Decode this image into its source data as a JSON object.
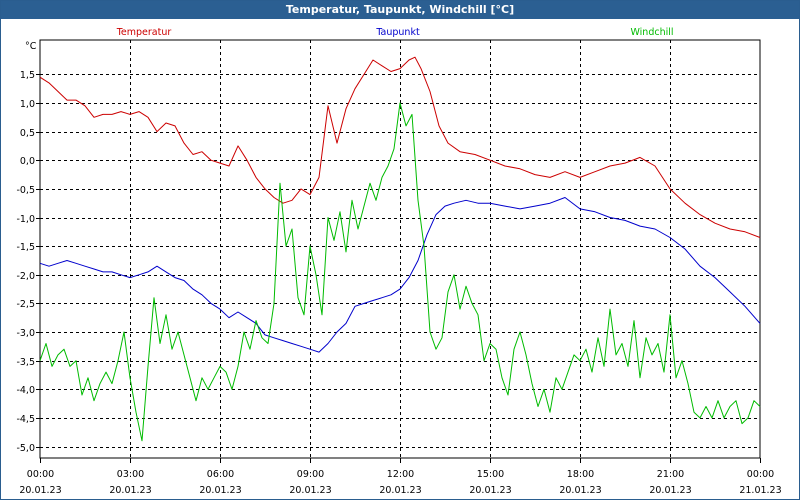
{
  "chart_data": {
    "type": "line",
    "title": "Temperatur, Taupunkt, Windchill [°C]",
    "ylabel": "°C",
    "ylim": [
      -5.2,
      2.1
    ],
    "y_ticks": [
      1.5,
      1.0,
      0.5,
      0.0,
      -0.5,
      -1.0,
      -1.5,
      -2.0,
      -2.5,
      -3.0,
      -3.5,
      -4.0,
      -4.5,
      -5.0
    ],
    "y_tick_labels": [
      "1,5",
      "1,0",
      "0,5",
      "0,0",
      "-0,5",
      "-1,0",
      "-1,5",
      "-2,0",
      "-2,5",
      "-3,0",
      "-3,5",
      "-4,0",
      "-4,5",
      "-5,0"
    ],
    "xlim": [
      0,
      24
    ],
    "x_ticks": [
      0,
      3,
      6,
      9,
      12,
      15,
      18,
      21,
      24
    ],
    "x_tick_times": [
      "00:00",
      "03:00",
      "06:00",
      "09:00",
      "12:00",
      "15:00",
      "18:00",
      "21:00",
      "00:00"
    ],
    "x_tick_dates": [
      "20.01.23",
      "20.01.23",
      "20.01.23",
      "20.01.23",
      "20.01.23",
      "20.01.23",
      "20.01.23",
      "20.01.23",
      "21.01.23"
    ],
    "grid": true,
    "series": [
      {
        "name": "Temperatur",
        "color": "#cc0000",
        "x": [
          0,
          0.3,
          0.6,
          0.9,
          1.2,
          1.5,
          1.8,
          2.1,
          2.4,
          2.7,
          3.0,
          3.3,
          3.6,
          3.9,
          4.2,
          4.5,
          4.8,
          5.1,
          5.4,
          5.7,
          6.0,
          6.3,
          6.6,
          6.9,
          7.2,
          7.5,
          7.8,
          8.1,
          8.4,
          8.7,
          9.0,
          9.3,
          9.6,
          9.9,
          10.2,
          10.5,
          10.8,
          11.1,
          11.4,
          11.7,
          12.0,
          12.3,
          12.5,
          12.7,
          13.0,
          13.3,
          13.6,
          14.0,
          14.5,
          15.0,
          15.5,
          16.0,
          16.5,
          17.0,
          17.5,
          18.0,
          18.5,
          19.0,
          19.5,
          20.0,
          20.5,
          21.0,
          21.5,
          22.0,
          22.5,
          23.0,
          23.5,
          24.0
        ],
        "values": [
          1.45,
          1.35,
          1.2,
          1.05,
          1.05,
          0.95,
          0.75,
          0.8,
          0.8,
          0.85,
          0.8,
          0.85,
          0.75,
          0.5,
          0.65,
          0.6,
          0.3,
          0.1,
          0.15,
          0.0,
          -0.05,
          -0.1,
          0.25,
          0.0,
          -0.3,
          -0.5,
          -0.65,
          -0.75,
          -0.7,
          -0.5,
          -0.6,
          -0.3,
          0.95,
          0.3,
          0.9,
          1.25,
          1.5,
          1.75,
          1.65,
          1.55,
          1.6,
          1.75,
          1.8,
          1.6,
          1.2,
          0.6,
          0.3,
          0.15,
          0.1,
          0.0,
          -0.1,
          -0.15,
          -0.25,
          -0.3,
          -0.2,
          -0.3,
          -0.2,
          -0.1,
          -0.05,
          0.05,
          -0.1,
          -0.5,
          -0.75,
          -0.95,
          -1.1,
          -1.2,
          -1.25,
          -1.35
        ]
      },
      {
        "name": "Taupunkt",
        "color": "#0000cc",
        "x": [
          0,
          0.3,
          0.6,
          0.9,
          1.2,
          1.5,
          1.8,
          2.1,
          2.4,
          2.7,
          3.0,
          3.3,
          3.6,
          3.9,
          4.2,
          4.5,
          4.8,
          5.1,
          5.4,
          5.7,
          6.0,
          6.3,
          6.6,
          6.9,
          7.2,
          7.5,
          7.8,
          8.1,
          8.4,
          8.7,
          9.0,
          9.3,
          9.6,
          9.9,
          10.2,
          10.5,
          10.8,
          11.1,
          11.4,
          11.7,
          12.0,
          12.3,
          12.6,
          12.9,
          13.2,
          13.5,
          13.8,
          14.2,
          14.6,
          15.0,
          15.5,
          16.0,
          16.5,
          17.0,
          17.5,
          18.0,
          18.5,
          19.0,
          19.5,
          20.0,
          20.5,
          21.0,
          21.5,
          22.0,
          22.5,
          23.0,
          23.5,
          24.0
        ],
        "values": [
          -1.8,
          -1.85,
          -1.8,
          -1.75,
          -1.8,
          -1.85,
          -1.9,
          -1.95,
          -1.95,
          -2.0,
          -2.05,
          -2.0,
          -1.95,
          -1.85,
          -1.95,
          -2.05,
          -2.1,
          -2.25,
          -2.35,
          -2.5,
          -2.6,
          -2.75,
          -2.65,
          -2.75,
          -2.85,
          -3.05,
          -3.1,
          -3.15,
          -3.2,
          -3.25,
          -3.3,
          -3.35,
          -3.2,
          -3.0,
          -2.85,
          -2.55,
          -2.5,
          -2.45,
          -2.4,
          -2.35,
          -2.25,
          -2.05,
          -1.75,
          -1.3,
          -0.95,
          -0.8,
          -0.75,
          -0.7,
          -0.75,
          -0.75,
          -0.8,
          -0.85,
          -0.8,
          -0.75,
          -0.65,
          -0.85,
          -0.9,
          -1.0,
          -1.05,
          -1.15,
          -1.2,
          -1.35,
          -1.55,
          -1.85,
          -2.05,
          -2.3,
          -2.55,
          -2.85
        ]
      },
      {
        "name": "Windchill",
        "color": "#00bb00",
        "x": [
          0,
          0.2,
          0.4,
          0.6,
          0.8,
          1.0,
          1.2,
          1.4,
          1.6,
          1.8,
          2.0,
          2.2,
          2.4,
          2.6,
          2.8,
          3.0,
          3.2,
          3.4,
          3.6,
          3.8,
          4.0,
          4.2,
          4.4,
          4.6,
          4.8,
          5.0,
          5.2,
          5.4,
          5.6,
          5.8,
          6.0,
          6.2,
          6.4,
          6.6,
          6.8,
          7.0,
          7.2,
          7.4,
          7.6,
          7.8,
          8.0,
          8.2,
          8.4,
          8.6,
          8.8,
          9.0,
          9.2,
          9.4,
          9.6,
          9.8,
          10.0,
          10.2,
          10.4,
          10.6,
          10.8,
          11.0,
          11.2,
          11.4,
          11.6,
          11.8,
          12.0,
          12.2,
          12.4,
          12.6,
          12.8,
          13.0,
          13.2,
          13.4,
          13.6,
          13.8,
          14.0,
          14.2,
          14.4,
          14.6,
          14.8,
          15.0,
          15.2,
          15.4,
          15.6,
          15.8,
          16.0,
          16.2,
          16.4,
          16.6,
          16.8,
          17.0,
          17.2,
          17.4,
          17.6,
          17.8,
          18.0,
          18.2,
          18.4,
          18.6,
          18.8,
          19.0,
          19.2,
          19.4,
          19.6,
          19.8,
          20.0,
          20.2,
          20.4,
          20.6,
          20.8,
          21.0,
          21.2,
          21.4,
          21.6,
          21.8,
          22.0,
          22.2,
          22.4,
          22.6,
          22.8,
          23.0,
          23.2,
          23.4,
          23.6,
          23.8,
          24.0
        ],
        "values": [
          -3.5,
          -3.2,
          -3.6,
          -3.4,
          -3.3,
          -3.6,
          -3.5,
          -4.1,
          -3.8,
          -4.2,
          -3.9,
          -3.7,
          -3.9,
          -3.5,
          -3.0,
          -3.8,
          -4.4,
          -4.9,
          -3.6,
          -2.4,
          -3.2,
          -2.7,
          -3.3,
          -3.0,
          -3.4,
          -3.8,
          -4.2,
          -3.8,
          -4.0,
          -3.8,
          -3.6,
          -3.7,
          -4.0,
          -3.6,
          -3.0,
          -3.3,
          -2.8,
          -3.1,
          -3.2,
          -2.5,
          -0.4,
          -1.5,
          -1.2,
          -2.4,
          -2.7,
          -1.5,
          -2.0,
          -2.7,
          -1.0,
          -1.4,
          -0.9,
          -1.6,
          -0.7,
          -1.2,
          -0.8,
          -0.4,
          -0.7,
          -0.3,
          -0.1,
          0.2,
          1.0,
          0.6,
          0.8,
          -0.7,
          -1.5,
          -3.0,
          -3.3,
          -3.1,
          -2.3,
          -2.0,
          -2.6,
          -2.2,
          -2.5,
          -2.7,
          -3.5,
          -3.2,
          -3.3,
          -3.8,
          -4.1,
          -3.3,
          -3.0,
          -3.4,
          -3.9,
          -4.3,
          -4.0,
          -4.4,
          -3.8,
          -4.0,
          -3.7,
          -3.4,
          -3.5,
          -3.3,
          -3.7,
          -3.1,
          -3.6,
          -2.6,
          -3.4,
          -3.2,
          -3.6,
          -2.8,
          -3.8,
          -3.1,
          -3.4,
          -3.2,
          -3.7,
          -2.7,
          -3.8,
          -3.5,
          -3.9,
          -4.4,
          -4.5,
          -4.3,
          -4.5,
          -4.2,
          -4.5,
          -4.3,
          -4.2,
          -4.6,
          -4.5,
          -4.2,
          -4.3
        ]
      }
    ]
  }
}
